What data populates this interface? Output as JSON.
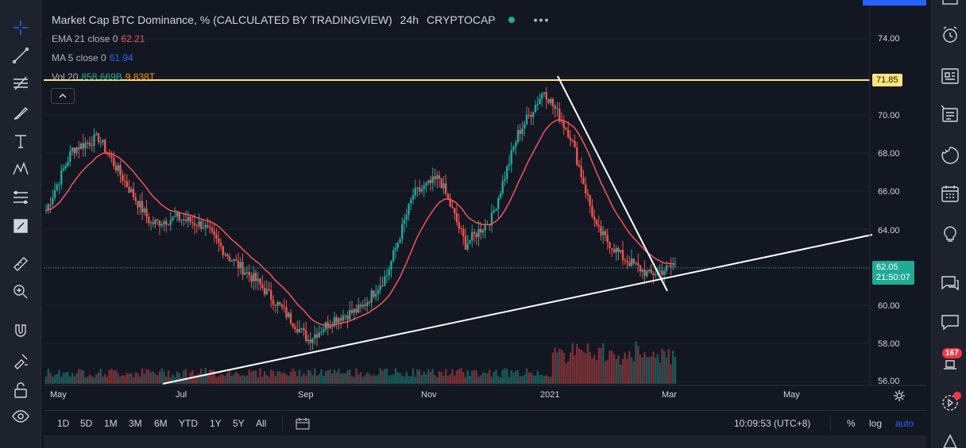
{
  "legend": {
    "title": "Market Cap BTC Dominance, % (CALCULATED BY TRADINGVIEW)",
    "interval": "24h",
    "exchange": "CRYPTOCAP",
    "more": "•••"
  },
  "indicators": {
    "ema": {
      "name": "EMA 21 close 0",
      "value": "62.21",
      "color": "#f7525f"
    },
    "ma": {
      "name": "MA 5 close 0",
      "value": "61.94",
      "color": "#2962ff"
    },
    "vol": {
      "name": "Vol 20",
      "value1": "858.669B",
      "value2": "9.838T",
      "color1": "#22ab94",
      "color2": "#ff9800"
    }
  },
  "price_axis": {
    "labels": [
      "74.00",
      "70.00",
      "68.00",
      "66.00",
      "64.00",
      "60.00",
      "58.00",
      "56.00"
    ],
    "line_tag": "71.85",
    "current": "62.05",
    "countdown": "21:50:07"
  },
  "time_axis": {
    "labels": [
      "May",
      "Jul",
      "Sep",
      "Nov",
      "2021",
      "Mar",
      "May"
    ]
  },
  "bottom_bar": {
    "ranges": [
      "1D",
      "5D",
      "1M",
      "3M",
      "6M",
      "YTD",
      "1Y",
      "5Y",
      "All"
    ],
    "clock": "10:09:53 (UTC+8)",
    "percent": "%",
    "log": "log",
    "auto": "auto"
  },
  "right_toolbar": {
    "badge": "167"
  },
  "chart_data": {
    "type": "candlestick",
    "title": "Market Cap BTC Dominance, % (CALCULATED BY TRADINGVIEW)",
    "ylim": [
      56,
      75
    ],
    "x_ticks": [
      "May",
      "Jul",
      "Sep",
      "Nov",
      "2021",
      "Mar",
      "May"
    ],
    "close_series": [
      {
        "x": "Apr",
        "y": 65.0
      },
      {
        "x": "May",
        "y": 68.2
      },
      {
        "x": "May-b",
        "y": 68.8
      },
      {
        "x": "Jun",
        "y": 66.5
      },
      {
        "x": "Jun-b",
        "y": 64.3
      },
      {
        "x": "Jun-c",
        "y": 64.6
      },
      {
        "x": "Jul",
        "y": 64.2
      },
      {
        "x": "Jul-b",
        "y": 62.5
      },
      {
        "x": "Aug",
        "y": 61.3
      },
      {
        "x": "Aug-b",
        "y": 59.8
      },
      {
        "x": "Sep",
        "y": 58.2
      },
      {
        "x": "Sep-b",
        "y": 59.3
      },
      {
        "x": "Oct",
        "y": 59.8
      },
      {
        "x": "Oct-b",
        "y": 61.6
      },
      {
        "x": "Oct-c",
        "y": 65.8
      },
      {
        "x": "Nov",
        "y": 66.7
      },
      {
        "x": "Nov-b",
        "y": 63.2
      },
      {
        "x": "Dec",
        "y": 64.6
      },
      {
        "x": "Dec-b",
        "y": 69.0
      },
      {
        "x": "2021",
        "y": 71.3
      },
      {
        "x": "Jan-b",
        "y": 68.9
      },
      {
        "x": "Jan-c",
        "y": 64.0
      },
      {
        "x": "Feb",
        "y": 62.5
      },
      {
        "x": "Feb-b",
        "y": 61.6
      },
      {
        "x": "Mar",
        "y": 62.05
      }
    ],
    "horizontal_line": 71.85,
    "current_price": 62.05
  }
}
